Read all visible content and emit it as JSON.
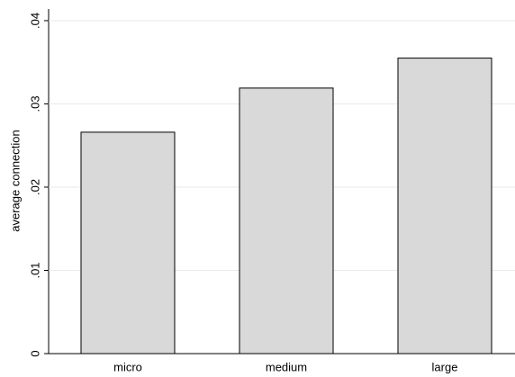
{
  "chart_data": {
    "type": "bar",
    "y_label": "average connection",
    "categories": [
      "micro",
      "medium",
      "large"
    ],
    "values": [
      0.0266,
      0.0319,
      0.0355
    ],
    "color": "#d9d9d9",
    "ylim": [
      0,
      0.0414
    ],
    "yticks": [
      0,
      {
        "value": 0.01,
        "label": ".01"
      },
      {
        "value": 0.02,
        "label": ".02"
      },
      {
        "value": 0.03,
        "label": ".03"
      },
      {
        "value": 0.04,
        "label": ".04"
      }
    ],
    "grid": true
  }
}
